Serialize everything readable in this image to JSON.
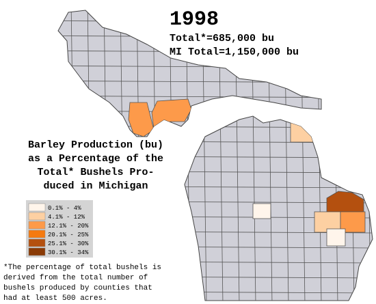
{
  "title": "1998",
  "totals": [
    "Total*=685,000 bu",
    "MI Total=1,150,000 bu"
  ],
  "heading": [
    "Barley Production (bu)",
    "as a Percentage of the",
    "Total* Bushels Pro-",
    "duced in Michigan"
  ],
  "legend": [
    {
      "label": "0.1% - 4%",
      "color": "#fff5eb"
    },
    {
      "label": "4.1% - 12%",
      "color": "#fdd0a2"
    },
    {
      "label": "12.1% - 20%",
      "color": "#fd9a4a"
    },
    {
      "label": "20.1% - 25%",
      "color": "#f57a10"
    },
    {
      "label": "25.1% - 30%",
      "color": "#b4500f"
    },
    {
      "label": "30.1% - 34%",
      "color": "#8a3a05"
    }
  ],
  "footnote": [
    "*The percentage of total bushels is",
    "derived from the total number of",
    "bushels produced by counties that",
    "had at least 500 acres."
  ]
}
